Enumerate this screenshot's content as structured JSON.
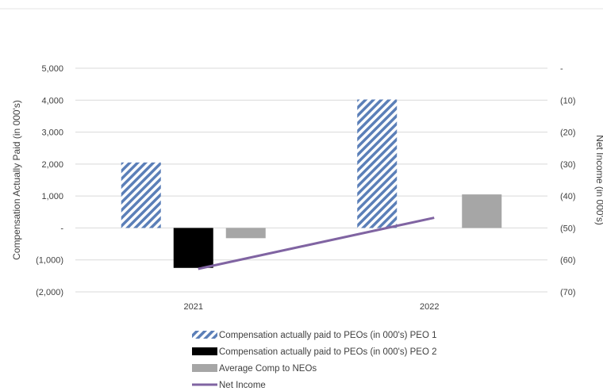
{
  "chart_data": {
    "type": "bar",
    "categories": [
      "2021",
      "2022"
    ],
    "series": [
      {
        "name": "Compensation actually paid to PEOs (in 000's) PEO 1",
        "axis": "left",
        "kind": "bar",
        "pattern": "hatch",
        "color": "#5b7fb8",
        "values": [
          2050,
          4020
        ]
      },
      {
        "name": "Compensation actually paid to PEOs (in 000's) PEO 2",
        "axis": "left",
        "kind": "bar",
        "color": "#000000",
        "values": [
          -1250,
          null
        ]
      },
      {
        "name": "Average Comp to NEOs",
        "axis": "left",
        "kind": "bar",
        "color": "#a6a6a6",
        "values": [
          -320,
          1050
        ]
      },
      {
        "name": "Net Income",
        "axis": "right",
        "kind": "line",
        "color": "#8064a2",
        "values": [
          -62.8,
          -46.8
        ]
      }
    ],
    "ylabel": "Compensation Actually Paid (in 000's)",
    "ylim": [
      -2000,
      5000
    ],
    "yticks": [
      "5,000",
      "4,000",
      "3,000",
      "2,000",
      "1,000",
      "-",
      "(1,000)",
      "(2,000)"
    ],
    "y2label": "Net Income (in 000's)",
    "y2lim": [
      -70,
      0
    ],
    "y2ticks": [
      "-",
      "(10)",
      "(20)",
      "(30)",
      "(40)",
      "(50)",
      "(60)",
      "(70)"
    ],
    "grid": true,
    "legend": "bottom"
  }
}
